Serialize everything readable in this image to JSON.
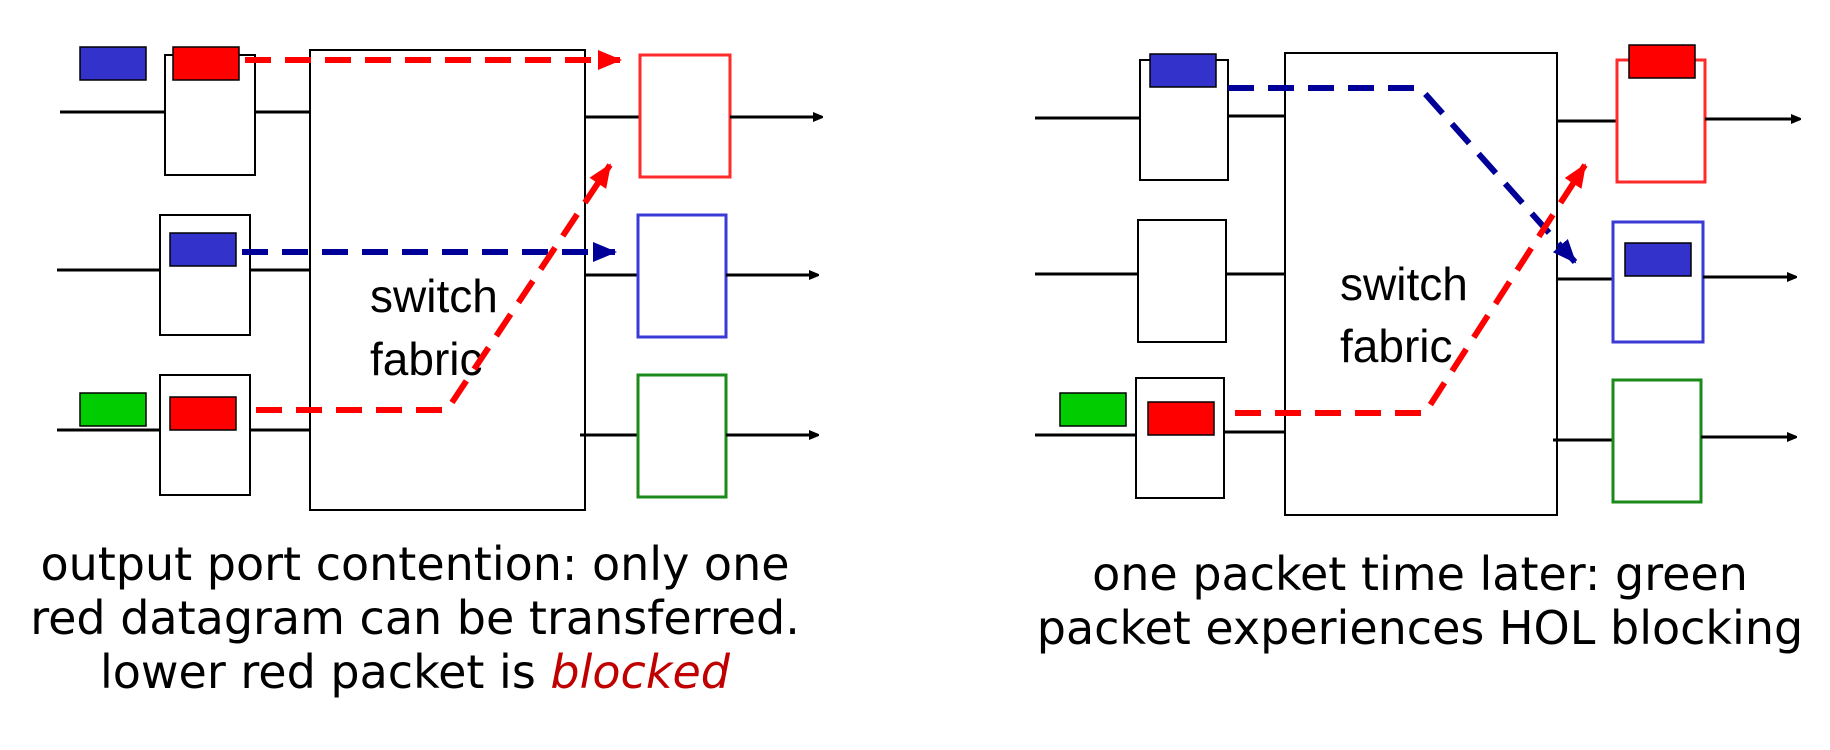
{
  "colors": {
    "red": "#ff0000",
    "blue": "#3333cc",
    "dark_blue": "#000099",
    "green": "#00cc00",
    "output_red": "#ff2a2a",
    "output_blue": "#3a3ad6",
    "output_green": "#1a8a1a",
    "blocked": "#c00000"
  },
  "left_panel": {
    "fabric_label_line1": "switch",
    "fabric_label_line2": "fabric",
    "caption_line1": "output port contention: only one",
    "caption_line2": "red datagram can be transferred.",
    "caption_line3_prefix": "lower red packet is ",
    "caption_line3_emphasis": "blocked"
  },
  "right_panel": {
    "fabric_label_line1": "switch",
    "fabric_label_line2": "fabric",
    "caption_line1": "one packet time later: green",
    "caption_line2": "packet experiences HOL blocking"
  }
}
